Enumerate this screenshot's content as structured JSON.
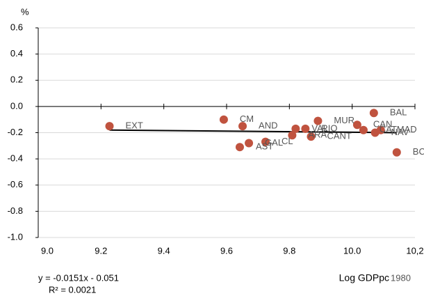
{
  "chart_data": {
    "type": "scatter",
    "y_label": "%",
    "x_label": "Log GDPpc",
    "x_label_note": "1980",
    "equation": "y = -0.0151x - 0.051",
    "r_squared": "R² = 0.0021",
    "color": "#c0533f",
    "trend_color": "#000000",
    "x": [
      9.227,
      9.591,
      9.651,
      9.642,
      9.671,
      9.724,
      9.809,
      9.82,
      9.851,
      9.869,
      9.891,
      10.016,
      10.036,
      10.069,
      10.073,
      10.091,
      10.142
    ],
    "values": [
      -0.15,
      -0.1,
      -0.15,
      -0.31,
      -0.28,
      -0.27,
      -0.22,
      -0.17,
      -0.17,
      -0.23,
      -0.11,
      -0.14,
      -0.18,
      -0.05,
      -0.2,
      -0.18,
      -0.35
    ],
    "labels": [
      "EXT",
      "CM",
      "AND",
      "AST",
      "GAL",
      "CL",
      "ARA",
      "VAL",
      "RIO",
      "CANT",
      "MUR",
      "CAN",
      "CAT",
      "BAL",
      "NAV",
      "MAD",
      "BC"
    ],
    "trendline": {
      "x": [
        9.227,
        10.142
      ],
      "y": [
        -0.18,
        -0.2
      ]
    },
    "xlim": [
      9.0,
      10.2
    ],
    "ylim": [
      -1.0,
      0.6
    ],
    "xticks": [
      {
        "value": 9.0,
        "label": "9.0"
      },
      9.2,
      9.4,
      9.6,
      9.8,
      {
        "value": 10.0,
        "label": "10.0"
      },
      {
        "value": 10.2,
        "label": "10,2"
      }
    ],
    "yticks": [
      {
        "value": -1.0,
        "label": "-1.0"
      },
      -0.8,
      -0.6,
      -0.4,
      -0.2,
      {
        "value": 0.0,
        "label": "0.0"
      },
      0.2,
      0.4,
      0.6
    ],
    "grid": true
  }
}
